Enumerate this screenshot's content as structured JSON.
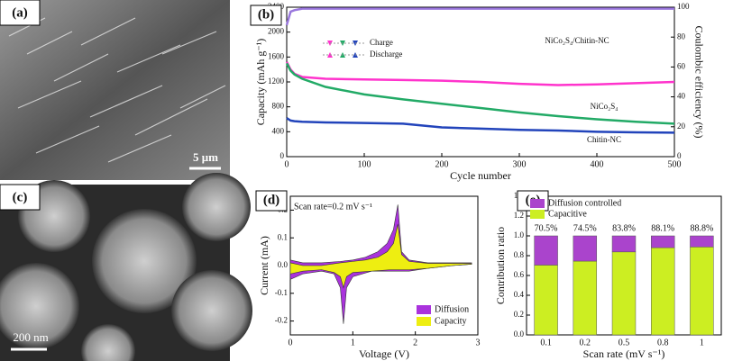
{
  "images": [
    {
      "panel": "(a)",
      "scale_bar": "5 μm"
    },
    {
      "panel": "(c)",
      "scale_bar": "200 nm"
    }
  ],
  "chart_data": [
    {
      "type": "line",
      "panel": "(b)",
      "xlabel": "Cycle number",
      "ylabel": "Capacity (mAh g⁻¹)",
      "y2label": "Coulombic efficiency (%)",
      "legend_labels": [
        "Charge",
        "Discharge"
      ],
      "x": [
        0,
        5,
        10,
        20,
        50,
        100,
        150,
        200,
        250,
        300,
        350,
        400,
        450,
        500
      ],
      "xlim": [
        0,
        500
      ],
      "xticks": [
        0,
        100,
        200,
        300,
        400,
        500
      ],
      "ylim": [
        0,
        2400
      ],
      "yticks": [
        0,
        400,
        800,
        1200,
        1600,
        2000,
        2400
      ],
      "y2lim": [
        0,
        100
      ],
      "y2ticks": [
        0,
        20,
        40,
        60,
        80,
        100
      ],
      "series": [
        {
          "name": "NiCo₂S₄/Chitin-NC",
          "color": "#ff33cc",
          "values": [
            1520,
            1400,
            1330,
            1280,
            1250,
            1240,
            1230,
            1220,
            1200,
            1170,
            1150,
            1160,
            1180,
            1200
          ]
        },
        {
          "name": "NiCo₂S₄",
          "color": "#22aa66",
          "values": [
            1500,
            1380,
            1320,
            1250,
            1120,
            1000,
            920,
            850,
            780,
            710,
            650,
            600,
            560,
            530
          ]
        },
        {
          "name": "Chitin-NC",
          "color": "#2244bb",
          "values": [
            620,
            580,
            570,
            560,
            550,
            540,
            530,
            470,
            450,
            430,
            420,
            400,
            390,
            385
          ]
        },
        {
          "color": "#9977dd",
          "axis": "y2",
          "values": [
            88,
            97,
            98,
            99,
            99,
            99,
            99,
            99,
            99,
            99,
            99,
            99,
            99,
            99
          ]
        }
      ]
    },
    {
      "type": "area",
      "panel": "(d)",
      "xlabel": "Voltage (V)",
      "ylabel": "Current (mA)",
      "annotation": "Scan rate=0.2 mV s⁻¹",
      "xlim": [
        0,
        3
      ],
      "xticks": [
        0,
        1,
        2,
        3
      ],
      "ylim": [
        -0.25,
        0.25
      ],
      "yticks": [
        -0.2,
        -0.1,
        {
          "value": 0,
          "label": "0.0"
        },
        0.1,
        0.2
      ],
      "series": [
        {
          "name": "Diffusion",
          "color": "#aa33dd",
          "x": [
            0,
            0.2,
            0.5,
            0.8,
            1.0,
            1.2,
            1.4,
            1.55,
            1.65,
            1.72,
            1.78,
            1.9,
            2.2,
            2.6,
            2.9,
            2.9,
            2.6,
            2.2,
            1.9,
            1.6,
            1.3,
            1.0,
            0.9,
            0.85,
            0.8,
            0.7,
            0.5,
            0.2,
            0
          ],
          "values": [
            0.02,
            0.01,
            0.01,
            0.015,
            0.02,
            0.03,
            0.05,
            0.08,
            0.13,
            0.22,
            0.05,
            0.02,
            0.01,
            0.01,
            0.01,
            0.005,
            0.0,
            -0.01,
            -0.02,
            -0.02,
            -0.02,
            -0.04,
            -0.08,
            -0.21,
            -0.08,
            -0.03,
            -0.02,
            -0.03,
            -0.05
          ]
        },
        {
          "name": "Capacity",
          "color": "#eeee11",
          "x": [
            0,
            0.2,
            0.5,
            0.8,
            1.0,
            1.2,
            1.4,
            1.55,
            1.65,
            1.72,
            1.78,
            1.9,
            2.2,
            2.6,
            2.9,
            2.9,
            2.6,
            2.2,
            1.9,
            1.6,
            1.3,
            1.0,
            0.9,
            0.85,
            0.8,
            0.7,
            0.5,
            0.2,
            0
          ],
          "values": [
            0.01,
            0.0,
            0.0,
            0.01,
            0.015,
            0.02,
            0.03,
            0.05,
            0.08,
            0.15,
            0.04,
            0.015,
            0.008,
            0.008,
            0.008,
            0.005,
            0.0,
            -0.01,
            -0.015,
            -0.015,
            -0.02,
            -0.025,
            -0.04,
            -0.08,
            -0.04,
            -0.025,
            -0.015,
            -0.02,
            -0.03
          ]
        }
      ]
    },
    {
      "type": "bar",
      "panel": "(e)",
      "stacked": true,
      "xlabel": "Scan rate (mV s⁻¹)",
      "ylabel": "Contribution ratio",
      "categories": [
        "0.1",
        "0.2",
        "0.5",
        "0.8",
        "1"
      ],
      "ylim": [
        0,
        1.4
      ],
      "yticks": [
        {
          "value": 0,
          "label": "0.0"
        },
        0.2,
        0.4,
        0.6,
        0.8,
        {
          "value": 1,
          "label": "1.0"
        },
        1.2,
        1.4
      ],
      "series": [
        {
          "name": "Capacitive",
          "color": "#ccee22",
          "values": [
            0.705,
            0.745,
            0.838,
            0.881,
            0.888
          ],
          "value_labels": [
            "70.5%",
            "74.5%",
            "83.8%",
            "88.1%",
            "88.8%"
          ]
        },
        {
          "name": "Diffusion controlled",
          "color": "#aa44cc",
          "values": [
            0.295,
            0.255,
            0.162,
            0.119,
            0.112
          ]
        }
      ]
    }
  ]
}
